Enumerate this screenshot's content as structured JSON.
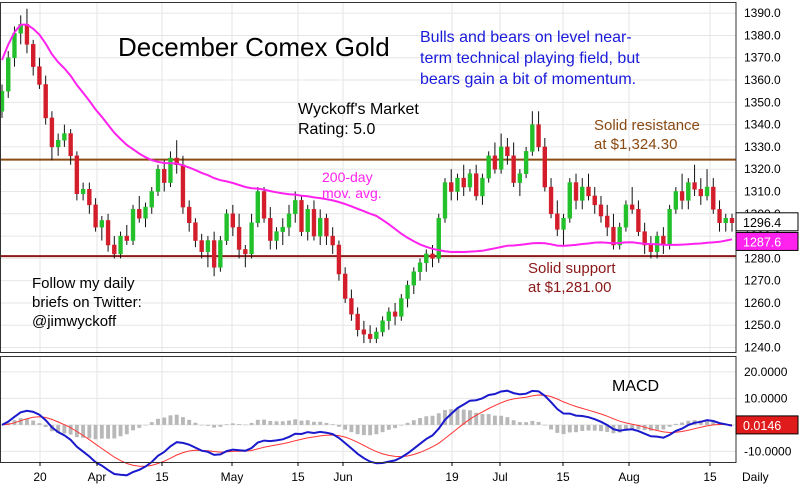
{
  "chart_data": [
    {
      "type": "candlestick",
      "title": "December Comex Gold",
      "headline": "Bulls and bears on level near-\nterm technical playing field, but\nbears gain a bit of momentum.",
      "rating_text": "Wyckoff's Market\nRating: 5.0",
      "twitter_note": "Follow my daily\nbriefs on Twitter:\n@jimwyckoff",
      "frequency": "Daily",
      "x_ticks": [
        "20",
        "Apr",
        "15",
        "May",
        "15",
        "Jun",
        "19",
        "Jul",
        "15",
        "Aug",
        "15"
      ],
      "ylim": [
        1238,
        1395
      ],
      "y_ticks": [
        1240.0,
        1250.0,
        1260.0,
        1270.0,
        1280.0,
        1290.0,
        1300.0,
        1310.0,
        1320.0,
        1330.0,
        1340.0,
        1350.0,
        1360.0,
        1370.0,
        1380.0,
        1390.0
      ],
      "last_price": 1296.4,
      "series": [
        {
          "name": "December Comex Gold",
          "candles": [
            [
              1346,
              1358,
              1343,
              1355
            ],
            [
              1355,
              1373,
              1352,
              1370
            ],
            [
              1370,
              1384,
              1366,
              1381
            ],
            [
              1381,
              1389,
              1376,
              1385
            ],
            [
              1385,
              1392,
              1372,
              1376
            ],
            [
              1376,
              1378,
              1362,
              1366
            ],
            [
              1366,
              1370,
              1356,
              1358
            ],
            [
              1358,
              1362,
              1340,
              1343
            ],
            [
              1343,
              1346,
              1324,
              1330
            ],
            [
              1330,
              1336,
              1326,
              1333
            ],
            [
              1333,
              1340,
              1330,
              1336
            ],
            [
              1336,
              1338,
              1322,
              1326
            ],
            [
              1326,
              1328,
              1306,
              1309
            ],
            [
              1309,
              1314,
              1306,
              1311
            ],
            [
              1311,
              1314,
              1300,
              1304
            ],
            [
              1304,
              1307,
              1292,
              1294
            ],
            [
              1294,
              1299,
              1288,
              1297
            ],
            [
              1297,
              1300,
              1283,
              1286
            ],
            [
              1286,
              1290,
              1280,
              1282
            ],
            [
              1282,
              1292,
              1280,
              1290
            ],
            [
              1290,
              1295,
              1286,
              1288
            ],
            [
              1288,
              1304,
              1286,
              1302
            ],
            [
              1302,
              1308,
              1296,
              1298
            ],
            [
              1298,
              1305,
              1294,
              1303
            ],
            [
              1303,
              1312,
              1300,
              1310
            ],
            [
              1310,
              1322,
              1308,
              1320
            ],
            [
              1320,
              1324,
              1310,
              1314
            ],
            [
              1314,
              1328,
              1312,
              1325
            ],
            [
              1325,
              1333,
              1318,
              1322
            ],
            [
              1322,
              1326,
              1300,
              1303
            ],
            [
              1303,
              1306,
              1292,
              1296
            ],
            [
              1296,
              1298,
              1285,
              1288
            ],
            [
              1288,
              1291,
              1280,
              1283
            ],
            [
              1283,
              1290,
              1276,
              1288
            ],
            [
              1288,
              1292,
              1272,
              1276
            ],
            [
              1276,
              1290,
              1274,
              1288
            ],
            [
              1288,
              1302,
              1286,
              1300
            ],
            [
              1300,
              1304,
              1290,
              1294
            ],
            [
              1294,
              1300,
              1280,
              1284
            ],
            [
              1284,
              1286,
              1276,
              1282
            ],
            [
              1282,
              1300,
              1280,
              1296
            ],
            [
              1296,
              1312,
              1294,
              1310
            ],
            [
              1310,
              1312,
              1296,
              1298
            ],
            [
              1298,
              1303,
              1284,
              1288
            ],
            [
              1288,
              1294,
              1284,
              1292
            ],
            [
              1292,
              1298,
              1286,
              1294
            ],
            [
              1294,
              1304,
              1290,
              1300
            ],
            [
              1300,
              1310,
              1296,
              1306
            ],
            [
              1306,
              1308,
              1290,
              1292
            ],
            [
              1292,
              1304,
              1288,
              1302
            ],
            [
              1302,
              1306,
              1288,
              1290
            ],
            [
              1290,
              1302,
              1286,
              1298
            ],
            [
              1298,
              1300,
              1286,
              1290
            ],
            [
              1290,
              1294,
              1282,
              1286
            ],
            [
              1286,
              1288,
              1270,
              1273
            ],
            [
              1273,
              1276,
              1260,
              1262
            ],
            [
              1262,
              1266,
              1252,
              1255
            ],
            [
              1255,
              1258,
              1245,
              1248
            ],
            [
              1248,
              1252,
              1242,
              1246
            ],
            [
              1246,
              1250,
              1242,
              1244
            ],
            [
              1244,
              1249,
              1242,
              1247
            ],
            [
              1247,
              1254,
              1245,
              1252
            ],
            [
              1252,
              1258,
              1248,
              1256
            ],
            [
              1256,
              1260,
              1250,
              1254
            ],
            [
              1254,
              1264,
              1252,
              1262
            ],
            [
              1262,
              1270,
              1258,
              1268
            ],
            [
              1268,
              1276,
              1264,
              1274
            ],
            [
              1274,
              1280,
              1270,
              1278
            ],
            [
              1278,
              1284,
              1274,
              1282
            ],
            [
              1282,
              1286,
              1276,
              1280
            ],
            [
              1280,
              1300,
              1278,
              1298
            ],
            [
              1298,
              1316,
              1296,
              1314
            ],
            [
              1314,
              1320,
              1306,
              1310
            ],
            [
              1310,
              1318,
              1306,
              1316
            ],
            [
              1316,
              1322,
              1308,
              1312
            ],
            [
              1312,
              1320,
              1310,
              1318
            ],
            [
              1318,
              1322,
              1306,
              1308
            ],
            [
              1308,
              1318,
              1304,
              1316
            ],
            [
              1316,
              1328,
              1314,
              1326
            ],
            [
              1326,
              1332,
              1318,
              1320
            ],
            [
              1320,
              1336,
              1318,
              1330
            ],
            [
              1330,
              1334,
              1322,
              1326
            ],
            [
              1326,
              1332,
              1312,
              1314
            ],
            [
              1314,
              1320,
              1308,
              1318
            ],
            [
              1318,
              1330,
              1316,
              1328
            ],
            [
              1328,
              1346,
              1326,
              1340
            ],
            [
              1340,
              1346,
              1328,
              1330
            ],
            [
              1330,
              1334,
              1310,
              1312
            ],
            [
              1312,
              1316,
              1298,
              1300
            ],
            [
              1300,
              1306,
              1290,
              1293
            ],
            [
              1293,
              1300,
              1286,
              1298
            ],
            [
              1298,
              1316,
              1296,
              1314
            ],
            [
              1314,
              1318,
              1302,
              1306
            ],
            [
              1306,
              1316,
              1302,
              1312
            ],
            [
              1312,
              1318,
              1306,
              1308
            ],
            [
              1308,
              1312,
              1300,
              1304
            ],
            [
              1304,
              1308,
              1296,
              1299
            ],
            [
              1299,
              1304,
              1290,
              1294
            ],
            [
              1294,
              1300,
              1284,
              1286
            ],
            [
              1286,
              1296,
              1284,
              1294
            ],
            [
              1294,
              1306,
              1292,
              1304
            ],
            [
              1304,
              1312,
              1300,
              1302
            ],
            [
              1302,
              1306,
              1290,
              1292
            ],
            [
              1292,
              1296,
              1282,
              1286
            ],
            [
              1286,
              1290,
              1280,
              1283
            ],
            [
              1283,
              1292,
              1280,
              1290
            ],
            [
              1290,
              1294,
              1282,
              1286
            ],
            [
              1286,
              1304,
              1284,
              1302
            ],
            [
              1302,
              1312,
              1300,
              1310
            ],
            [
              1310,
              1318,
              1302,
              1306
            ],
            [
              1306,
              1316,
              1302,
              1314
            ],
            [
              1314,
              1322,
              1308,
              1311
            ],
            [
              1311,
              1316,
              1304,
              1308
            ],
            [
              1308,
              1320,
              1306,
              1312
            ],
            [
              1312,
              1316,
              1300,
              1302
            ],
            [
              1302,
              1306,
              1292,
              1296
            ],
            [
              1296,
              1300,
              1292,
              1298
            ],
            [
              1298,
              1300,
              1292,
              1296
            ]
          ]
        },
        {
          "name": "200-day mov. avg.",
          "label": "200-day\nmov. avg.",
          "color": "#ff22ee",
          "last_value": 1287.6
        },
        {
          "name": "Solid resistance",
          "label": "Solid resistance\nat $1,324.30",
          "value": 1324.3,
          "color": "#8b4a12"
        },
        {
          "name": "Solid support",
          "label": "Solid support\nat $1,281.00",
          "value": 1281.0,
          "color": "#8b1818"
        }
      ]
    },
    {
      "type": "line",
      "title": "MACD",
      "ylim": [
        -14,
        26
      ],
      "y_ticks": [
        20.0,
        10.0,
        0.0,
        -10.0
      ],
      "y_tick_labels": [
        "20.0000",
        "10.0000",
        "0.0000",
        "-10.0000"
      ],
      "last_value": 0.0146,
      "last_value_label": "0.0146",
      "series": [
        {
          "name": "MACD",
          "color": "#1a1acc"
        },
        {
          "name": "Signal",
          "color": "#ff3333"
        },
        {
          "name": "Histogram",
          "color": "#aaaaaa"
        }
      ]
    }
  ]
}
